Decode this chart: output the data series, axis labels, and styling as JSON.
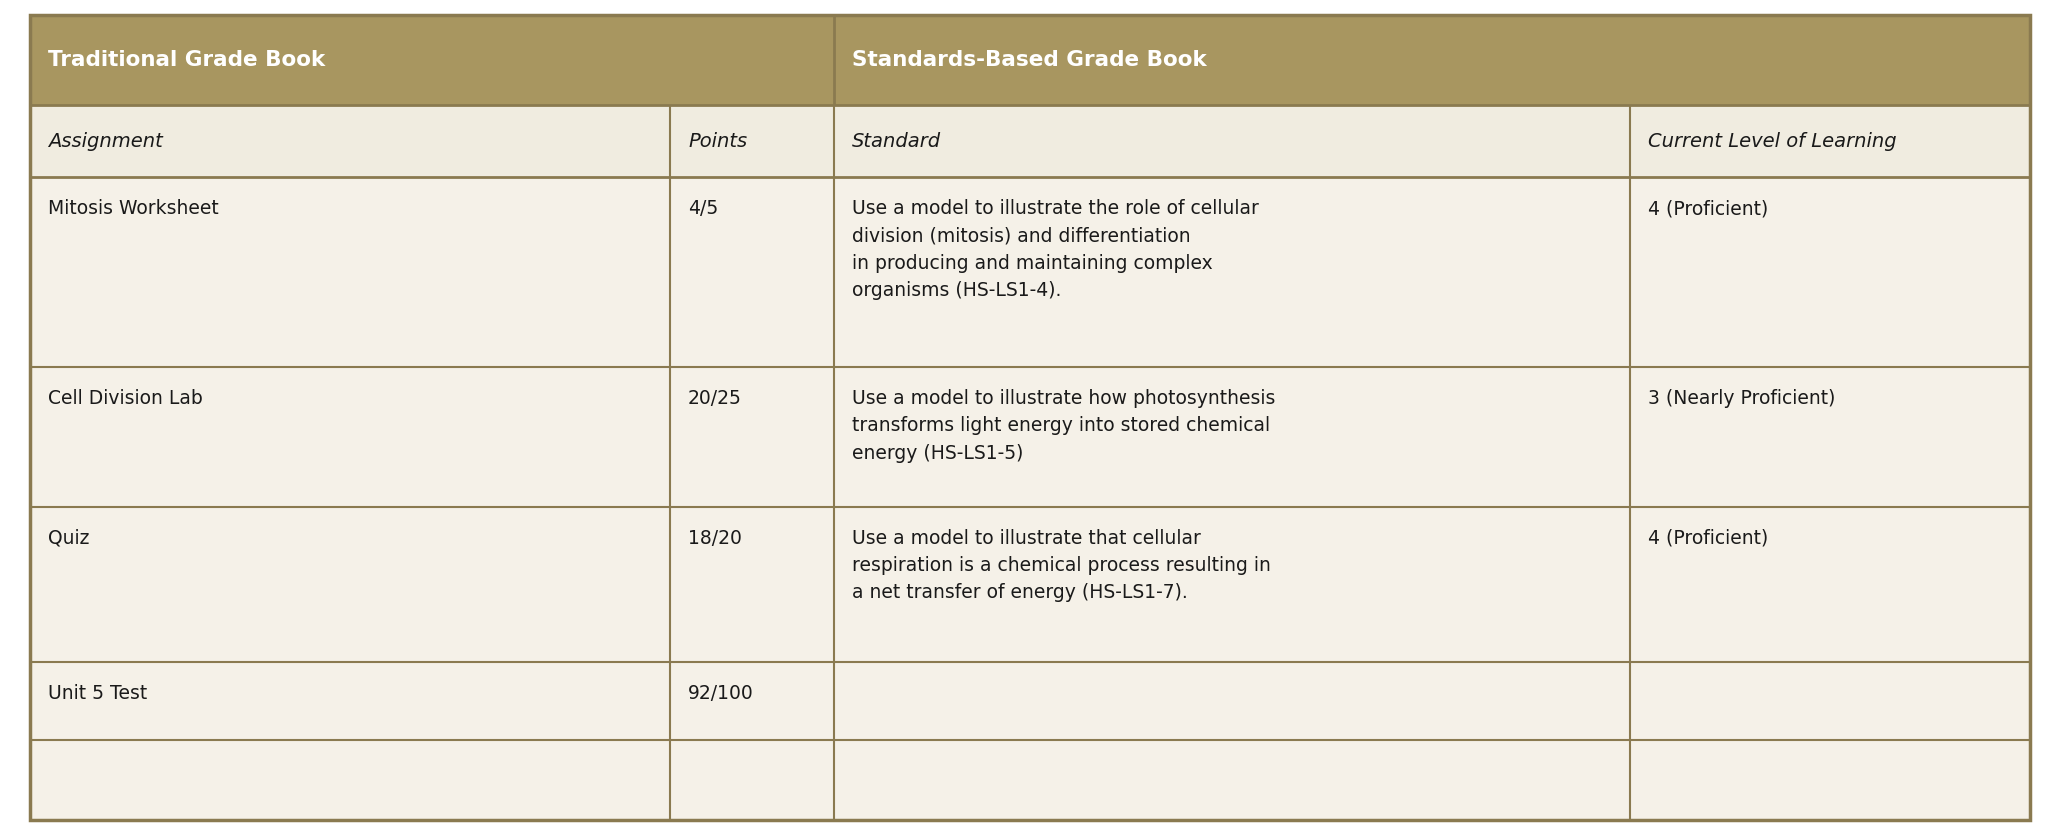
{
  "header_bg_color": "#a89660",
  "header_text_color": "#ffffff",
  "subheader_bg_color": "#f0ece0",
  "row_bg_color": "#f5f1e8",
  "body_text_color": "#1a1a1a",
  "border_color": "#8a7a50",
  "outer_border_color": "#8a7a50",
  "header_row": [
    "Traditional Grade Book",
    "Standards-Based Grade Book"
  ],
  "subheader_row": [
    "Assignment",
    "Points",
    "Standard",
    "Current Level of Learning"
  ],
  "rows": [
    [
      "Mitosis Worksheet",
      "4/5",
      "Use a model to illustrate the role of cellular\ndivision (mitosis) and differentiation\nin producing and maintaining complex\norganisms (HS-LS1-4).",
      "4 (Proficient)"
    ],
    [
      "Cell Division Lab",
      "20/25",
      "Use a model to illustrate how photosynthesis\ntransforms light energy into stored chemical\nenergy (HS-LS1-5)",
      "3 (Nearly Proficient)"
    ],
    [
      "Quiz",
      "18/20",
      "Use a model to illustrate that cellular\nrespiration is a chemical process resulting in\na net transfer of energy (HS-LS1-7).",
      "4 (Proficient)"
    ],
    [
      "Unit 5 Test",
      "92/100",
      "",
      ""
    ]
  ],
  "figsize": [
    20.58,
    8.34
  ],
  "dpi": 100,
  "header_fontsize": 15.5,
  "subheader_fontsize": 14,
  "body_fontsize": 13.5
}
